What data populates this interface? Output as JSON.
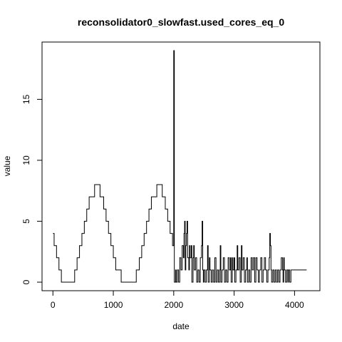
{
  "chart_data": {
    "type": "line",
    "title": "reconsolidator0_slowfast.used_cores_eq_0",
    "xlabel": "date",
    "ylabel": "value",
    "xlim": [
      -180,
      4420
    ],
    "ylim": [
      -0.7,
      19.7
    ],
    "x_ticks": [
      0,
      1000,
      2000,
      3000,
      4000
    ],
    "y_ticks": [
      0,
      5,
      10,
      15
    ],
    "grid": false,
    "line_color": "#000000",
    "series": [
      {
        "values": [
          [
            0,
            4
          ],
          [
            20,
            3
          ],
          [
            60,
            2
          ],
          [
            100,
            1
          ],
          [
            140,
            0
          ],
          [
            360,
            1
          ],
          [
            400,
            2
          ],
          [
            440,
            3
          ],
          [
            480,
            4
          ],
          [
            520,
            5
          ],
          [
            560,
            6
          ],
          [
            600,
            7
          ],
          [
            640,
            7
          ],
          [
            690,
            8
          ],
          [
            780,
            7
          ],
          [
            840,
            6
          ],
          [
            880,
            5
          ],
          [
            920,
            4
          ],
          [
            960,
            3
          ],
          [
            1000,
            2
          ],
          [
            1040,
            1
          ],
          [
            1080,
            1
          ],
          [
            1130,
            0
          ],
          [
            1380,
            1
          ],
          [
            1430,
            2
          ],
          [
            1470,
            3
          ],
          [
            1510,
            4
          ],
          [
            1550,
            5
          ],
          [
            1590,
            6
          ],
          [
            1630,
            7
          ],
          [
            1680,
            7
          ],
          [
            1720,
            8
          ],
          [
            1810,
            7
          ],
          [
            1860,
            6
          ],
          [
            1900,
            5
          ],
          [
            1940,
            4
          ],
          [
            1980,
            3
          ],
          [
            2000,
            19
          ],
          [
            2010,
            0
          ],
          [
            2030,
            1
          ],
          [
            2040,
            0
          ],
          [
            2060,
            1
          ],
          [
            2080,
            0
          ],
          [
            2100,
            2
          ],
          [
            2120,
            1
          ],
          [
            2140,
            3
          ],
          [
            2160,
            2
          ],
          [
            2170,
            4
          ],
          [
            2180,
            5
          ],
          [
            2190,
            1
          ],
          [
            2200,
            3
          ],
          [
            2210,
            4
          ],
          [
            2220,
            5
          ],
          [
            2230,
            2
          ],
          [
            2250,
            1
          ],
          [
            2260,
            3
          ],
          [
            2270,
            2
          ],
          [
            2290,
            3
          ],
          [
            2300,
            0
          ],
          [
            2320,
            2
          ],
          [
            2330,
            3
          ],
          [
            2340,
            1
          ],
          [
            2360,
            2
          ],
          [
            2380,
            0
          ],
          [
            2400,
            1
          ],
          [
            2420,
            0
          ],
          [
            2440,
            2
          ],
          [
            2460,
            3
          ],
          [
            2470,
            5
          ],
          [
            2480,
            1
          ],
          [
            2490,
            0
          ],
          [
            2500,
            1
          ],
          [
            2520,
            0
          ],
          [
            2540,
            1
          ],
          [
            2560,
            3
          ],
          [
            2570,
            0
          ],
          [
            2590,
            2
          ],
          [
            2600,
            1
          ],
          [
            2620,
            0
          ],
          [
            2640,
            1
          ],
          [
            2660,
            0
          ],
          [
            2680,
            2
          ],
          [
            2700,
            0
          ],
          [
            2720,
            1
          ],
          [
            2740,
            0
          ],
          [
            2760,
            1
          ],
          [
            2770,
            3
          ],
          [
            2780,
            0
          ],
          [
            2800,
            1
          ],
          [
            2820,
            2
          ],
          [
            2840,
            0
          ],
          [
            2860,
            1
          ],
          [
            2880,
            0
          ],
          [
            2900,
            2
          ],
          [
            2920,
            1
          ],
          [
            2940,
            2
          ],
          [
            2950,
            0
          ],
          [
            2970,
            2
          ],
          [
            2980,
            1
          ],
          [
            3000,
            2
          ],
          [
            3010,
            0
          ],
          [
            3030,
            1
          ],
          [
            3050,
            3
          ],
          [
            3060,
            1
          ],
          [
            3080,
            2
          ],
          [
            3100,
            0
          ],
          [
            3120,
            3
          ],
          [
            3130,
            1
          ],
          [
            3150,
            2
          ],
          [
            3170,
            0
          ],
          [
            3190,
            1
          ],
          [
            3210,
            2
          ],
          [
            3220,
            0
          ],
          [
            3240,
            1
          ],
          [
            3260,
            0
          ],
          [
            3280,
            2
          ],
          [
            3300,
            1
          ],
          [
            3320,
            2
          ],
          [
            3340,
            0
          ],
          [
            3360,
            2
          ],
          [
            3380,
            1
          ],
          [
            3400,
            0
          ],
          [
            3420,
            1
          ],
          [
            3440,
            2
          ],
          [
            3460,
            0
          ],
          [
            3480,
            1
          ],
          [
            3500,
            2
          ],
          [
            3520,
            1
          ],
          [
            3540,
            0
          ],
          [
            3560,
            1
          ],
          [
            3580,
            2
          ],
          [
            3590,
            4
          ],
          [
            3600,
            3
          ],
          [
            3610,
            1
          ],
          [
            3620,
            0
          ],
          [
            3640,
            1
          ],
          [
            3660,
            0
          ],
          [
            3680,
            1
          ],
          [
            3700,
            0
          ],
          [
            3720,
            1
          ],
          [
            3740,
            0
          ],
          [
            3760,
            1
          ],
          [
            3780,
            2
          ],
          [
            3800,
            1
          ],
          [
            3810,
            0
          ],
          [
            3820,
            2
          ],
          [
            3830,
            1
          ],
          [
            3850,
            0
          ],
          [
            3870,
            1
          ],
          [
            3890,
            0
          ],
          [
            3900,
            1
          ],
          [
            3920,
            0
          ],
          [
            3940,
            1
          ],
          [
            4000,
            1
          ],
          [
            4200,
            1
          ]
        ]
      }
    ]
  }
}
